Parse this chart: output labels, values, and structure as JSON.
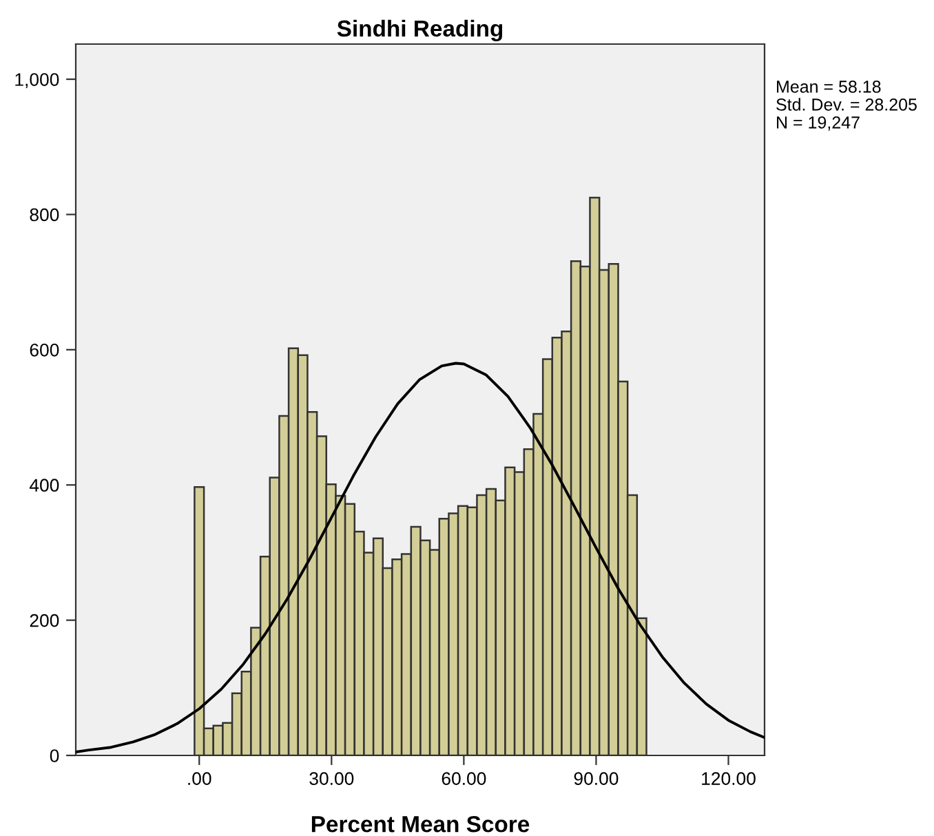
{
  "chart_data": {
    "type": "histogram",
    "title": "Sindhi Reading",
    "xlabel": "Percent Mean Score",
    "annotations": [
      "Mean = 58.18",
      "Std. Dev. = 28.205",
      "N = 19,247"
    ],
    "bins": [
      -1.07,
      1.07,
      3.2,
      5.34,
      7.47,
      9.61,
      11.74,
      13.88,
      16.01,
      18.15,
      20.28,
      22.42,
      24.55,
      26.69,
      28.82,
      30.96,
      33.09,
      35.23,
      37.36,
      39.5,
      41.63,
      43.77,
      45.9,
      48.04,
      50.17,
      52.31,
      54.44,
      56.58,
      58.71,
      60.85,
      62.98,
      65.12,
      67.25,
      69.39,
      71.52,
      73.66,
      75.79,
      77.93,
      80.06,
      82.2,
      84.33,
      86.47,
      88.6,
      90.74,
      92.87,
      95.01,
      97.14,
      99.28,
      101.41
    ],
    "values": [
      397,
      40,
      44,
      48,
      92,
      124,
      189,
      294,
      411,
      502,
      602,
      592,
      508,
      472,
      401,
      384,
      372,
      331,
      300,
      321,
      277,
      290,
      298,
      338,
      318,
      304,
      350,
      358,
      369,
      367,
      385,
      394,
      377,
      426,
      419,
      453,
      505,
      586,
      618,
      627,
      731,
      723,
      825,
      718,
      727,
      553,
      385,
      203
    ],
    "color": "#d3ce97",
    "series": [
      {
        "type": "line",
        "color": "#000000",
        "x": [
          -28,
          -25,
          -20,
          -15,
          -10,
          -5,
          0,
          5,
          10,
          15,
          20,
          25,
          30,
          35,
          40,
          45,
          50,
          55,
          58.18,
          60,
          65,
          70,
          75,
          80,
          85,
          90,
          95,
          100,
          105,
          110,
          115,
          120,
          125,
          128
        ],
        "values": [
          5,
          8,
          12,
          20,
          31,
          47,
          69,
          98,
          135,
          180,
          232,
          290,
          352,
          414,
          471,
          520,
          556,
          576,
          580,
          579,
          563,
          531,
          485,
          430,
          369,
          307,
          247,
          193,
          146,
          107,
          76,
          52,
          35,
          27
        ]
      }
    ],
    "xlim": [
      -28,
      128.2
    ],
    "ylim": [
      0,
      1052
    ],
    "xticks": [
      {
        "value": 0,
        "label": ".00"
      },
      {
        "value": 30,
        "label": "30.00"
      },
      {
        "value": 60,
        "label": "60.00"
      },
      {
        "value": 90,
        "label": "90.00"
      },
      {
        "value": 120,
        "label": "120.00"
      }
    ],
    "yticks": [
      0,
      200,
      400,
      600,
      800,
      {
        "value": 1000,
        "label": "1,000"
      }
    ],
    "grid": false
  }
}
